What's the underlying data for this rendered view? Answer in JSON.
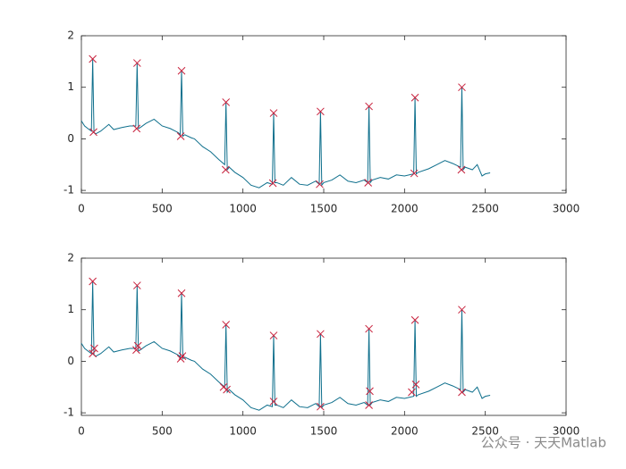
{
  "chart_data": [
    {
      "type": "line",
      "x": [
        0,
        20,
        40,
        62,
        70,
        78,
        90,
        120,
        170,
        200,
        250,
        300,
        337,
        345,
        353,
        365,
        400,
        450,
        500,
        550,
        600,
        612,
        620,
        628,
        640,
        680,
        700,
        750,
        800,
        850,
        887,
        895,
        903,
        915,
        950,
        1000,
        1050,
        1100,
        1150,
        1182,
        1190,
        1198,
        1210,
        1250,
        1300,
        1350,
        1400,
        1450,
        1472,
        1480,
        1488,
        1500,
        1550,
        1600,
        1650,
        1700,
        1750,
        1772,
        1780,
        1788,
        1800,
        1850,
        1900,
        1950,
        2000,
        2057,
        2065,
        2073,
        2085,
        2150,
        2200,
        2250,
        2300,
        2347,
        2355,
        2363,
        2375,
        2420,
        2450,
        2480,
        2500,
        2530
      ],
      "series": [
        {
          "color": "#0e6f8c",
          "values": [
            0.35,
            0.25,
            0.2,
            0.15,
            1.55,
            0.12,
            0.1,
            0.15,
            0.28,
            0.18,
            0.22,
            0.25,
            0.25,
            1.47,
            0.2,
            0.22,
            0.3,
            0.38,
            0.25,
            0.2,
            0.12,
            0.08,
            1.32,
            0.05,
            0.08,
            0.02,
            0,
            -0.15,
            -0.25,
            -0.4,
            -0.5,
            0.71,
            -0.6,
            -0.55,
            -0.65,
            -0.75,
            -0.9,
            -0.95,
            -0.85,
            -0.88,
            0.5,
            -0.85,
            -0.85,
            -0.9,
            -0.75,
            -0.88,
            -0.9,
            -0.82,
            -0.88,
            0.53,
            -0.9,
            -0.85,
            -0.8,
            -0.7,
            -0.82,
            -0.85,
            -0.8,
            -0.85,
            0.63,
            -0.85,
            -0.8,
            -0.75,
            -0.78,
            -0.7,
            -0.72,
            -0.68,
            0.8,
            -0.68,
            -0.65,
            -0.58,
            -0.5,
            -0.42,
            -0.48,
            -0.55,
            1.0,
            -0.6,
            -0.55,
            -0.6,
            -0.5,
            -0.72,
            -0.68,
            -0.66
          ]
        }
      ],
      "markers": {
        "color": "#c8203c",
        "x": [
          70,
          345,
          620,
          895,
          1190,
          1480,
          1780,
          2065,
          2355,
          75,
          342,
          615,
          893,
          1185,
          1475,
          1775,
          2060,
          2352
        ],
        "y": [
          1.55,
          1.47,
          1.32,
          0.71,
          0.5,
          0.53,
          0.63,
          0.8,
          1.0,
          0.13,
          0.2,
          0.05,
          -0.6,
          -0.86,
          -0.88,
          -0.85,
          -0.67,
          -0.6
        ]
      },
      "xlim": [
        0,
        3000
      ],
      "xticks": [
        0,
        500,
        1000,
        1500,
        2000,
        2500,
        3000
      ],
      "ylim": [
        -1.05,
        2
      ],
      "yticks": [
        -1,
        0,
        1,
        2
      ]
    },
    {
      "type": "line",
      "x": [
        0,
        20,
        40,
        62,
        70,
        78,
        90,
        120,
        170,
        200,
        250,
        300,
        337,
        345,
        353,
        365,
        400,
        450,
        500,
        550,
        600,
        612,
        620,
        628,
        640,
        680,
        700,
        750,
        800,
        850,
        887,
        895,
        903,
        915,
        950,
        1000,
        1050,
        1100,
        1150,
        1182,
        1190,
        1198,
        1210,
        1250,
        1300,
        1350,
        1400,
        1450,
        1472,
        1480,
        1488,
        1500,
        1550,
        1600,
        1650,
        1700,
        1750,
        1772,
        1780,
        1788,
        1800,
        1850,
        1900,
        1950,
        2000,
        2057,
        2065,
        2073,
        2085,
        2150,
        2200,
        2250,
        2300,
        2347,
        2355,
        2363,
        2375,
        2420,
        2450,
        2480,
        2500,
        2530
      ],
      "series": [
        {
          "color": "#0e6f8c",
          "values": [
            0.35,
            0.25,
            0.2,
            0.15,
            1.55,
            0.12,
            0.1,
            0.15,
            0.28,
            0.18,
            0.22,
            0.25,
            0.25,
            1.47,
            0.2,
            0.22,
            0.3,
            0.38,
            0.25,
            0.2,
            0.12,
            0.08,
            1.32,
            0.05,
            0.08,
            0.02,
            0,
            -0.15,
            -0.25,
            -0.4,
            -0.5,
            0.71,
            -0.6,
            -0.55,
            -0.65,
            -0.75,
            -0.9,
            -0.95,
            -0.85,
            -0.88,
            0.5,
            -0.85,
            -0.85,
            -0.9,
            -0.75,
            -0.88,
            -0.9,
            -0.82,
            -0.88,
            0.53,
            -0.9,
            -0.85,
            -0.8,
            -0.7,
            -0.82,
            -0.85,
            -0.8,
            -0.85,
            0.63,
            -0.85,
            -0.8,
            -0.75,
            -0.78,
            -0.7,
            -0.72,
            -0.68,
            0.8,
            -0.68,
            -0.65,
            -0.58,
            -0.5,
            -0.42,
            -0.48,
            -0.55,
            1.0,
            -0.6,
            -0.55,
            -0.6,
            -0.5,
            -0.72,
            -0.68,
            -0.66
          ]
        }
      ],
      "markers": {
        "color": "#c8203c",
        "x": [
          70,
          345,
          620,
          895,
          1190,
          1480,
          1780,
          2065,
          2355,
          70,
          80,
          340,
          350,
          615,
          625,
          880,
          900,
          1190,
          1480,
          1785,
          1780,
          2045,
          2070,
          2355
        ],
        "y": [
          1.55,
          1.47,
          1.32,
          0.71,
          0.5,
          0.53,
          0.63,
          0.8,
          1.0,
          0.15,
          0.25,
          0.22,
          0.3,
          0.05,
          0.1,
          -0.5,
          -0.55,
          -0.78,
          -0.88,
          -0.58,
          -0.85,
          -0.6,
          -0.45,
          -0.6
        ]
      },
      "xlim": [
        0,
        3000
      ],
      "xticks": [
        0,
        500,
        1000,
        1500,
        2000,
        2500,
        3000
      ],
      "ylim": [
        -1.05,
        2
      ],
      "yticks": [
        -1,
        0,
        1,
        2
      ]
    }
  ],
  "watermark": "公众号 · 天天Matlab"
}
